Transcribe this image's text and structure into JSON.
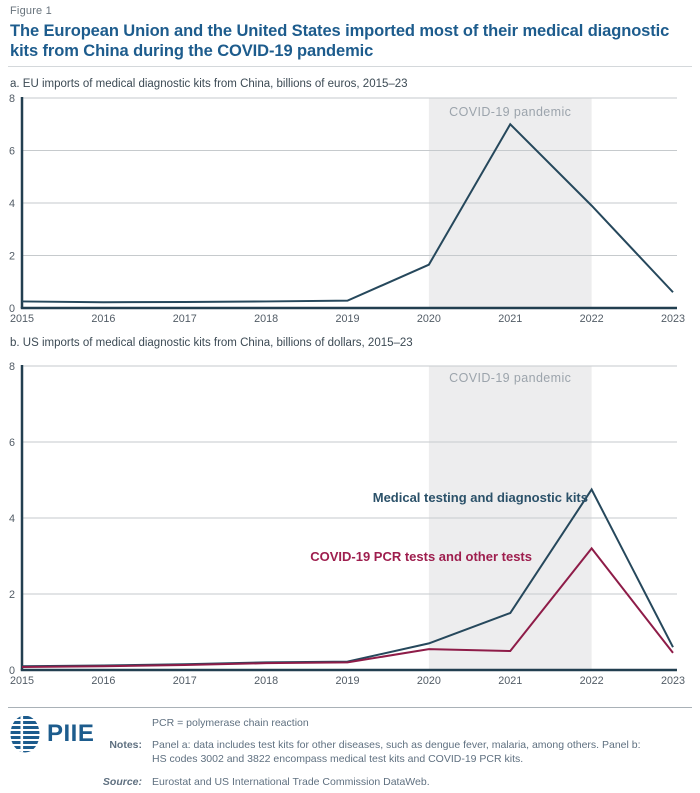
{
  "figure_label": "Figure 1",
  "title": "The European Union and the United States imported most of their medical diagnostic kits from China during the COVID-19 pandemic",
  "colors": {
    "title_blue": "#1d5c8d",
    "navy_line": "#26485c",
    "red_line": "#8e1c48",
    "navy_label": "#2b5169",
    "red_label": "#9e1e4e",
    "band": "#ededee",
    "band_label": "#9ca4ac",
    "gridline": "#c6cacd",
    "axis": "#223f50",
    "tick_label": "#525c66"
  },
  "chart_data": [
    {
      "type": "line",
      "panel": "a",
      "title": "a. EU imports of medical diagnostic kits from China, billions of euros, 2015–23",
      "categories": [
        "2015",
        "2016",
        "2017",
        "2018",
        "2019",
        "2020",
        "2021",
        "2022",
        "2023"
      ],
      "ylim": [
        0,
        8
      ],
      "yticks": [
        0,
        2,
        4,
        6,
        8
      ],
      "grid": true,
      "band": {
        "label": "COVID-19 pandemic",
        "from": "2020",
        "to": "2022"
      },
      "series": [
        {
          "name": "EU imports",
          "color": "#26485c",
          "values": [
            0.25,
            0.22,
            0.23,
            0.25,
            0.28,
            1.65,
            7.0,
            3.9,
            0.6
          ]
        }
      ]
    },
    {
      "type": "line",
      "panel": "b",
      "title": "b. US imports of medical diagnostic kits from China, billions of dollars, 2015–23",
      "categories": [
        "2015",
        "2016",
        "2017",
        "2018",
        "2019",
        "2020",
        "2021",
        "2022",
        "2023"
      ],
      "ylim": [
        0,
        8
      ],
      "yticks": [
        0,
        2,
        4,
        6,
        8
      ],
      "grid": true,
      "band": {
        "label": "COVID-19 pandemic",
        "from": "2020",
        "to": "2022"
      },
      "series": [
        {
          "name": "Medical testing and diagnostic kits",
          "color": "#26485c",
          "label_color": "#2b5169",
          "values": [
            0.1,
            0.12,
            0.15,
            0.2,
            0.22,
            0.7,
            1.5,
            4.75,
            0.6
          ]
        },
        {
          "name": "COVID-19 PCR tests and other tests",
          "color": "#8e1c48",
          "label_color": "#9e1e4e",
          "values": [
            0.08,
            0.1,
            0.13,
            0.18,
            0.2,
            0.55,
            0.5,
            3.2,
            0.45
          ]
        }
      ]
    }
  ],
  "footer": {
    "logo_text": "PIIE",
    "abbrev": "PCR = polymerase chain reaction",
    "notes_label": "Notes:",
    "notes": "Panel a: data includes test kits for other diseases, such as dengue fever, malaria, among others. Panel b: HS codes 3002 and 3822 encompass medical test kits and COVID-19 PCR kits.",
    "source_label": "Source:",
    "source": "Eurostat and US International Trade Commission DataWeb."
  }
}
